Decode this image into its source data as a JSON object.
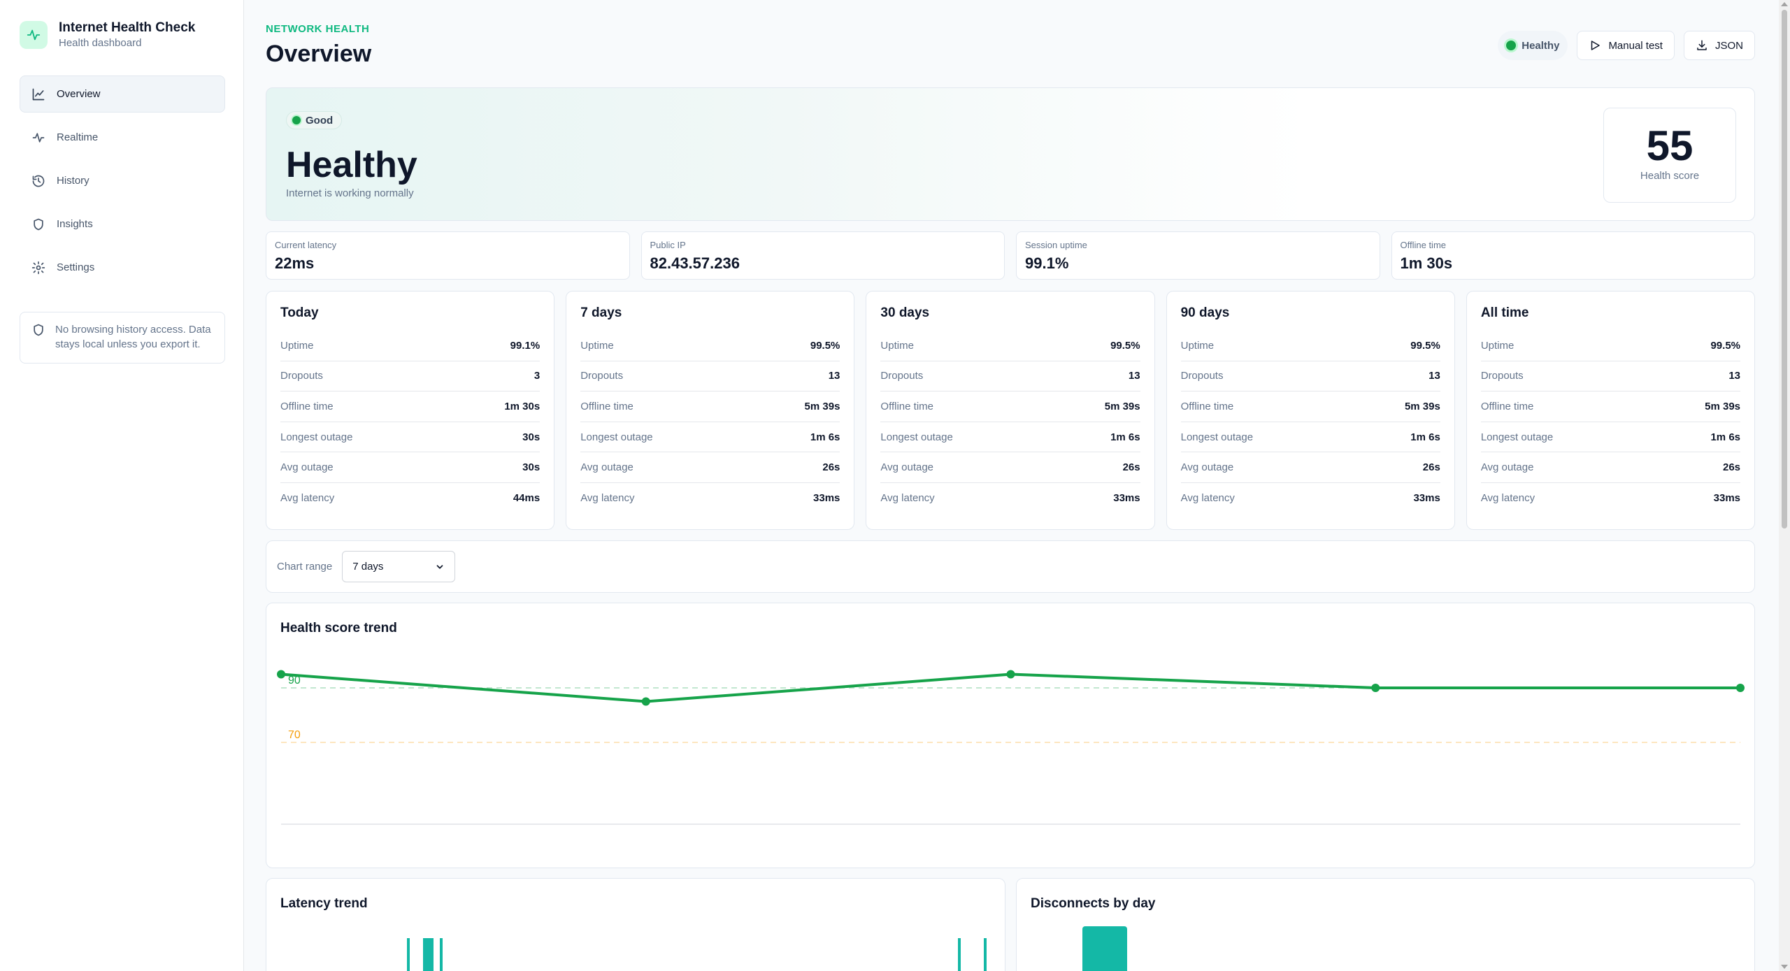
{
  "app": {
    "title": "Internet Health Check",
    "subtitle": "Health dashboard"
  },
  "sidebar": {
    "items": [
      {
        "label": "Overview",
        "icon": "chart-line-icon",
        "active": true
      },
      {
        "label": "Realtime",
        "icon": "activity-icon",
        "active": false
      },
      {
        "label": "History",
        "icon": "history-icon",
        "active": false
      },
      {
        "label": "Insights",
        "icon": "shield-icon",
        "active": false
      },
      {
        "label": "Settings",
        "icon": "gear-icon",
        "active": false
      }
    ],
    "privacy_note": "No browsing history access. Data stays local unless you export it."
  },
  "header": {
    "eyebrow": "NETWORK HEALTH",
    "title": "Overview",
    "status": "Healthy",
    "manual_test_label": "Manual test",
    "json_label": "JSON"
  },
  "hero": {
    "badge": "Good",
    "title": "Healthy",
    "subtitle": "Internet is working normally",
    "score": "55",
    "score_label": "Health score"
  },
  "kpis": [
    {
      "label": "Current latency",
      "value": "22ms"
    },
    {
      "label": "Public IP",
      "value": "82.43.57.236"
    },
    {
      "label": "Session uptime",
      "value": "99.1%"
    },
    {
      "label": "Offline time",
      "value": "1m 30s"
    }
  ],
  "periods": [
    {
      "title": "Today",
      "rows": [
        {
          "k": "Uptime",
          "v": "99.1%"
        },
        {
          "k": "Dropouts",
          "v": "3"
        },
        {
          "k": "Offline time",
          "v": "1m 30s"
        },
        {
          "k": "Longest outage",
          "v": "30s"
        },
        {
          "k": "Avg outage",
          "v": "30s"
        },
        {
          "k": "Avg latency",
          "v": "44ms"
        }
      ]
    },
    {
      "title": "7 days",
      "rows": [
        {
          "k": "Uptime",
          "v": "99.5%"
        },
        {
          "k": "Dropouts",
          "v": "13"
        },
        {
          "k": "Offline time",
          "v": "5m 39s"
        },
        {
          "k": "Longest outage",
          "v": "1m 6s"
        },
        {
          "k": "Avg outage",
          "v": "26s"
        },
        {
          "k": "Avg latency",
          "v": "33ms"
        }
      ]
    },
    {
      "title": "30 days",
      "rows": [
        {
          "k": "Uptime",
          "v": "99.5%"
        },
        {
          "k": "Dropouts",
          "v": "13"
        },
        {
          "k": "Offline time",
          "v": "5m 39s"
        },
        {
          "k": "Longest outage",
          "v": "1m 6s"
        },
        {
          "k": "Avg outage",
          "v": "26s"
        },
        {
          "k": "Avg latency",
          "v": "33ms"
        }
      ]
    },
    {
      "title": "90 days",
      "rows": [
        {
          "k": "Uptime",
          "v": "99.5%"
        },
        {
          "k": "Dropouts",
          "v": "13"
        },
        {
          "k": "Offline time",
          "v": "5m 39s"
        },
        {
          "k": "Longest outage",
          "v": "1m 6s"
        },
        {
          "k": "Avg outage",
          "v": "26s"
        },
        {
          "k": "Avg latency",
          "v": "33ms"
        }
      ]
    },
    {
      "title": "All time",
      "rows": [
        {
          "k": "Uptime",
          "v": "99.5%"
        },
        {
          "k": "Dropouts",
          "v": "13"
        },
        {
          "k": "Offline time",
          "v": "5m 39s"
        },
        {
          "k": "Longest outage",
          "v": "1m 6s"
        },
        {
          "k": "Avg outage",
          "v": "26s"
        },
        {
          "k": "Avg latency",
          "v": "33ms"
        }
      ]
    }
  ],
  "chart_range": {
    "label": "Chart range",
    "selected": "7 days"
  },
  "charts": {
    "health_title": "Health score trend",
    "latency_title": "Latency trend",
    "disconnects_title": "Disconnects by day"
  },
  "colors": {
    "accent": "#10b981",
    "line": "#16a34a",
    "threshold_good": "#16a34a",
    "threshold_warn": "#f59e0b",
    "bar": "#14b8a6"
  },
  "chart_data": {
    "type": "line",
    "title": "Health score trend",
    "x": [
      1,
      2,
      3,
      4,
      5
    ],
    "series": [
      {
        "values": [
          95,
          85,
          95,
          90,
          90
        ]
      }
    ],
    "ylim": [
      40,
      100
    ],
    "reference_lines": [
      {
        "value": 90,
        "label": "90",
        "color": "#16a34a"
      },
      {
        "value": 70,
        "label": "70",
        "color": "#f59e0b"
      }
    ],
    "grid": false
  }
}
